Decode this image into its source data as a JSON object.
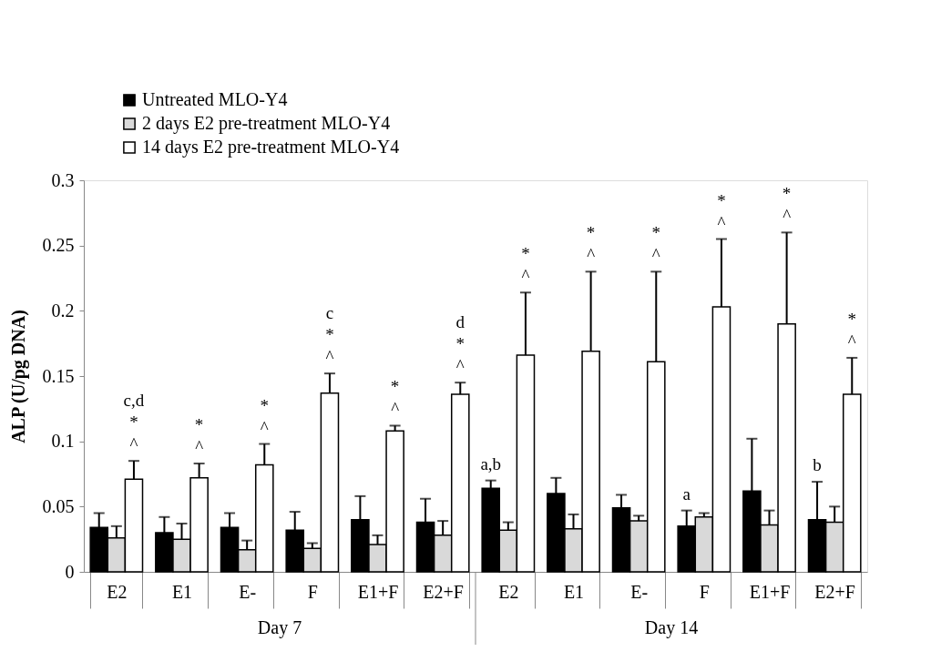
{
  "chart_data": {
    "type": "bar",
    "ylabel": "ALP (U/pg DNA)",
    "categories": [
      "E2",
      "E1",
      "E-",
      "F",
      "E1+F",
      "E2+F",
      "E2",
      "E1",
      "E-",
      "F",
      "E1+F",
      "E2+F"
    ],
    "series": [
      {
        "name": "Untreated MLO-Y4",
        "color": "#000000",
        "values": [
          0.034,
          0.03,
          0.034,
          0.032,
          0.04,
          0.038,
          0.064,
          0.06,
          0.049,
          0.035,
          0.062,
          0.04
        ],
        "errors": [
          [
            0.034,
            0.045
          ],
          [
            0.03,
            0.042
          ],
          [
            0.034,
            0.045
          ],
          [
            0.032,
            0.046
          ],
          [
            0.04,
            0.058
          ],
          [
            0.038,
            0.056
          ],
          [
            0.064,
            0.07
          ],
          [
            0.06,
            0.072
          ],
          [
            0.049,
            0.059
          ],
          [
            0.035,
            0.047
          ],
          [
            0.062,
            0.102
          ],
          [
            0.04,
            0.069
          ]
        ],
        "value_labels": [
          null,
          null,
          null,
          null,
          null,
          null,
          "a,b",
          null,
          null,
          "a",
          null,
          "b"
        ]
      },
      {
        "name": "2 days E2 pre-treatment MLO-Y4",
        "color": "#d9d9d9",
        "values": [
          0.026,
          0.025,
          0.017,
          0.018,
          0.021,
          0.028,
          0.032,
          0.033,
          0.039,
          0.042,
          0.036,
          0.038
        ],
        "errors": [
          [
            0.026,
            0.035
          ],
          [
            0.025,
            0.037
          ],
          [
            0.017,
            0.024
          ],
          [
            0.018,
            0.022
          ],
          [
            0.021,
            0.028
          ],
          [
            0.028,
            0.039
          ],
          [
            0.032,
            0.038
          ],
          [
            0.033,
            0.044
          ],
          [
            0.039,
            0.043
          ],
          [
            0.042,
            0.045
          ],
          [
            0.036,
            0.047
          ],
          [
            0.038,
            0.05
          ]
        ]
      },
      {
        "name": "14 days E2 pre-treatment MLO-Y4",
        "color": "#ffffff",
        "values": [
          0.071,
          0.072,
          0.082,
          0.137,
          0.108,
          0.136,
          0.166,
          0.169,
          0.161,
          0.203,
          0.19,
          0.136
        ],
        "errors": [
          [
            0.071,
            0.085
          ],
          [
            0.072,
            0.083
          ],
          [
            0.082,
            0.098
          ],
          [
            0.137,
            0.152
          ],
          [
            0.108,
            0.112
          ],
          [
            0.136,
            0.145
          ],
          [
            0.166,
            0.214
          ],
          [
            0.169,
            0.23
          ],
          [
            0.161,
            0.23
          ],
          [
            0.203,
            0.255
          ],
          [
            0.19,
            0.26
          ],
          [
            0.136,
            0.164
          ]
        ],
        "value_labels": [
          "c,d\n*\n^",
          "*\n^",
          "*\n^",
          "c\n*\n^",
          "*\n^",
          "d\n*\n^",
          "*\n^",
          "*\n^",
          "*\n^",
          "*\n^",
          "*\n^",
          "*\n^"
        ]
      }
    ],
    "ylim": [
      0,
      0.3
    ],
    "yticks": [
      0,
      0.05,
      0.1,
      0.15,
      0.2,
      0.25,
      0.3
    ],
    "annotations": [
      "Day 7",
      "Day 14"
    ],
    "legend": "top left",
    "grid": false
  }
}
